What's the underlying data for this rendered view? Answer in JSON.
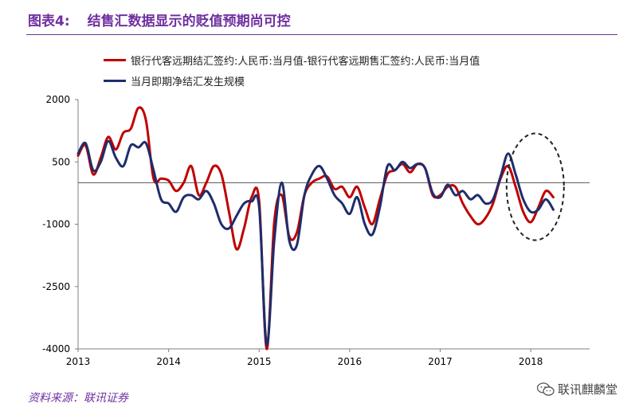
{
  "header": {
    "figure_label": "图表4:",
    "figure_title": "结售汇数据显示的贬值预期尚可控"
  },
  "source": "资料来源：联讯证券",
  "watermark": {
    "text": "联讯麒麟堂",
    "icon": "wechat-icon"
  },
  "colors": {
    "red": "#c00000",
    "navy": "#1f2d6b",
    "purple": "#7030a0",
    "axis": "#7f7f7f",
    "circle": "#222222"
  },
  "chart_data": {
    "type": "line",
    "title": "",
    "xlabel": "",
    "ylabel": "",
    "ylim": [
      -4000,
      2000
    ],
    "yticks": [
      2000,
      500,
      -1000,
      -2500,
      -4000
    ],
    "ytick_labels": [
      "2000",
      "500",
      "-1000",
      "-2500",
      "-4000"
    ],
    "xlim": [
      2013.0,
      2018.65
    ],
    "xticks": [
      2013,
      2014,
      2015,
      2016,
      2017,
      2018
    ],
    "xtick_labels": [
      "2013",
      "2014",
      "2015",
      "2016",
      "2017",
      "2018"
    ],
    "zero_line": true,
    "legend_position": "top-left",
    "series": [
      {
        "name": "银行代客远期结汇签约:人民币:当月值-银行代客远期售汇签约:人民币:当月值",
        "color": "#c00000",
        "x": [
          2013.0,
          2013.083,
          2013.167,
          2013.25,
          2013.333,
          2013.417,
          2013.5,
          2013.583,
          2013.667,
          2013.75,
          2013.833,
          2013.917,
          2014.0,
          2014.083,
          2014.167,
          2014.25,
          2014.333,
          2014.417,
          2014.5,
          2014.583,
          2014.667,
          2014.75,
          2014.833,
          2014.917,
          2015.0,
          2015.083,
          2015.167,
          2015.25,
          2015.333,
          2015.417,
          2015.5,
          2015.583,
          2015.667,
          2015.75,
          2015.833,
          2015.917,
          2016.0,
          2016.083,
          2016.167,
          2016.25,
          2016.333,
          2016.417,
          2016.5,
          2016.583,
          2016.667,
          2016.75,
          2016.833,
          2016.917,
          2017.0,
          2017.083,
          2017.167,
          2017.25,
          2017.333,
          2017.417,
          2017.5,
          2017.583,
          2017.667,
          2017.75,
          2017.833,
          2017.917,
          2018.0,
          2018.083,
          2018.167,
          2018.25
        ],
        "y": [
          650,
          900,
          200,
          600,
          1100,
          800,
          1200,
          1300,
          1800,
          1500,
          100,
          100,
          50,
          -200,
          0,
          400,
          -300,
          0,
          400,
          200,
          -700,
          -1600,
          -1100,
          -350,
          -450,
          -4000,
          -950,
          -300,
          -1300,
          -1200,
          -300,
          0,
          100,
          150,
          -150,
          -100,
          -350,
          -100,
          -600,
          -1000,
          -400,
          200,
          300,
          450,
          250,
          450,
          350,
          -300,
          -300,
          -100,
          -100,
          -500,
          -800,
          -1000,
          -850,
          -500,
          100,
          400,
          -100,
          -700,
          -950,
          -600,
          -200,
          -350
        ],
        "note": "red line"
      },
      {
        "name": "当月即期净结汇发生规模",
        "color": "#1f2d6b",
        "x": [
          2013.0,
          2013.083,
          2013.167,
          2013.25,
          2013.333,
          2013.417,
          2013.5,
          2013.583,
          2013.667,
          2013.75,
          2013.833,
          2013.917,
          2014.0,
          2014.083,
          2014.167,
          2014.25,
          2014.333,
          2014.417,
          2014.5,
          2014.583,
          2014.667,
          2014.75,
          2014.833,
          2014.917,
          2015.0,
          2015.083,
          2015.167,
          2015.25,
          2015.333,
          2015.417,
          2015.5,
          2015.583,
          2015.667,
          2015.75,
          2015.833,
          2015.917,
          2016.0,
          2016.083,
          2016.167,
          2016.25,
          2016.333,
          2016.417,
          2016.5,
          2016.583,
          2016.667,
          2016.75,
          2016.833,
          2016.917,
          2017.0,
          2017.083,
          2017.167,
          2017.25,
          2017.333,
          2017.417,
          2017.5,
          2017.583,
          2017.667,
          2017.75,
          2017.833,
          2017.917,
          2018.0,
          2018.083,
          2018.167,
          2018.25
        ],
        "y": [
          700,
          950,
          300,
          500,
          1000,
          600,
          400,
          900,
          850,
          950,
          300,
          -400,
          -500,
          -700,
          -350,
          -300,
          -400,
          -200,
          -500,
          -1000,
          -1100,
          -800,
          -500,
          -450,
          -600,
          -3900,
          -1400,
          0,
          -1400,
          -1500,
          -300,
          200,
          400,
          100,
          -300,
          -500,
          -750,
          -350,
          -1000,
          -1250,
          -600,
          400,
          300,
          500,
          350,
          450,
          350,
          -250,
          -350,
          -50,
          -300,
          -200,
          -400,
          -300,
          -500,
          -400,
          150,
          700,
          200,
          -400,
          -700,
          -650,
          -400,
          -650
        ]
      }
    ]
  }
}
